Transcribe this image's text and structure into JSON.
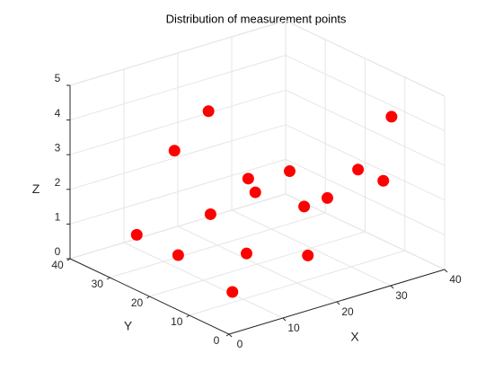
{
  "chart_data": {
    "type": "scatter3d",
    "title": "Distribution of measurement points",
    "xlabel": "X",
    "ylabel": "Y",
    "zlabel": "Z",
    "x": [
      22,
      12,
      22,
      27,
      26,
      35,
      39,
      36,
      33,
      25,
      15,
      5,
      9,
      18,
      22,
      8
    ],
    "y": [
      35,
      30,
      25,
      30,
      20,
      15,
      12,
      10,
      20,
      15,
      25,
      30,
      25,
      20,
      10,
      10
    ],
    "z": [
      3.5,
      3.1,
      2.1,
      1.2,
      2.4,
      2.3,
      3.8,
      2.2,
      1.3,
      1.7,
      1.4,
      1,
      0.5,
      0.4,
      0.7,
      0.3
    ],
    "color": "#ff0000",
    "xlim": [
      0,
      40
    ],
    "ylim": [
      0,
      40
    ],
    "zlim": [
      0,
      5
    ],
    "xticks": [
      0,
      10,
      20,
      30,
      40
    ],
    "yticks": [
      0,
      10,
      20,
      30,
      40
    ],
    "zticks": [
      0,
      1,
      2,
      3,
      4,
      5
    ],
    "grid": true
  }
}
